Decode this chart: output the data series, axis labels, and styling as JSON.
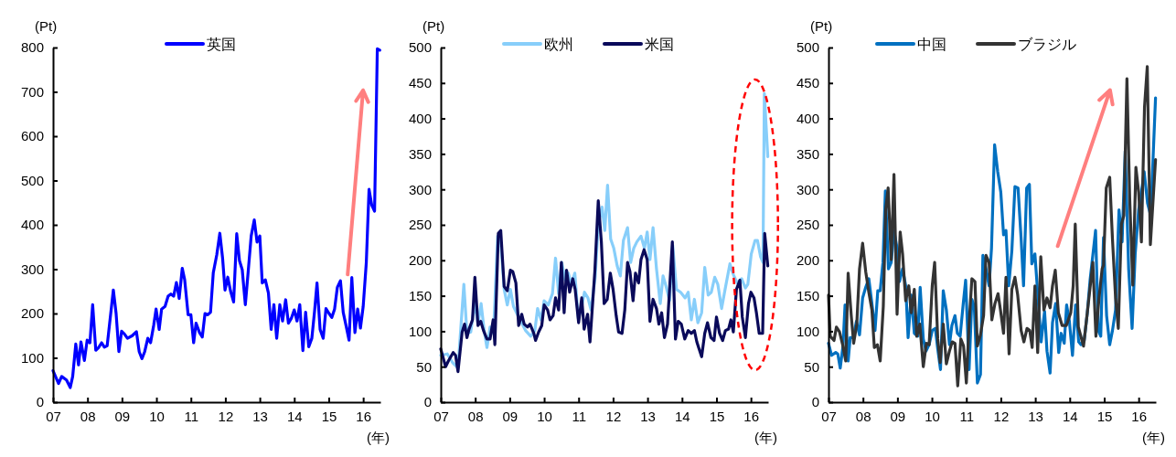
{
  "chart_data": [
    {
      "type": "line",
      "ylabel": "(Pt)",
      "xlabel": "(年)",
      "legend": "top",
      "xlim": [
        2007,
        2016.5
      ],
      "ylim": [
        0,
        800
      ],
      "yticks": [
        0,
        100,
        200,
        300,
        400,
        500,
        600,
        700,
        800
      ],
      "xticks": [
        {
          "value": 2007,
          "label": "07"
        },
        {
          "value": 2008,
          "label": "08"
        },
        {
          "value": 2009,
          "label": "09"
        },
        {
          "value": 2010,
          "label": "10"
        },
        {
          "value": 2011,
          "label": "11"
        },
        {
          "value": 2012,
          "label": "12"
        },
        {
          "value": 2013,
          "label": "13"
        },
        {
          "value": 2014,
          "label": "14"
        },
        {
          "value": 2015,
          "label": "15"
        },
        {
          "value": 2016,
          "label": "16"
        }
      ],
      "series": [
        {
          "name": "英国",
          "color": "#0000ff",
          "x": [
            2007.0,
            2007.16,
            2007.25,
            2007.39,
            2007.5,
            2007.57,
            2007.66,
            2007.74,
            2007.81,
            2007.91,
            2007.99,
            2008.07,
            2008.15,
            2008.24,
            2008.32,
            2008.41,
            2008.49,
            2008.57,
            2008.75,
            2008.83,
            2008.91,
            2008.99,
            2009.07,
            2009.16,
            2009.3,
            2009.42,
            2009.5,
            2009.58,
            2009.66,
            2009.75,
            2009.83,
            2009.92,
            2009.99,
            2010.08,
            2010.15,
            2010.25,
            2010.34,
            2010.42,
            2010.5,
            2010.58,
            2010.66,
            2010.75,
            2010.82,
            2010.92,
            2011.0,
            2011.08,
            2011.15,
            2011.25,
            2011.33,
            2011.41,
            2011.49,
            2011.57,
            2011.65,
            2011.75,
            2011.84,
            2011.92,
            2011.99,
            2012.07,
            2012.15,
            2012.24,
            2012.33,
            2012.41,
            2012.49,
            2012.58,
            2012.66,
            2012.75,
            2012.84,
            2012.92,
            2013.0,
            2013.07,
            2013.16,
            2013.25,
            2013.33,
            2013.41,
            2013.49,
            2013.58,
            2013.66,
            2013.75,
            2013.83,
            2013.92,
            2014.0,
            2014.08,
            2014.16,
            2014.25,
            2014.33,
            2014.42,
            2014.51,
            2014.59,
            2014.66,
            2014.75,
            2014.84,
            2014.92,
            2015.01,
            2015.09,
            2015.17,
            2015.25,
            2015.34,
            2015.42,
            2015.51,
            2015.59,
            2015.67,
            2015.76,
            2015.84,
            2015.92,
            2016.0,
            2016.09,
            2016.17,
            2016.25,
            2016.33,
            2016.41,
            2016.48
          ],
          "values": [
            71,
            42,
            58,
            50,
            33,
            58,
            131,
            84,
            136,
            94,
            140,
            134,
            220,
            117,
            123,
            134,
            124,
            127,
            253,
            200,
            114,
            160,
            154,
            144,
            150,
            159,
            114,
            98,
            114,
            144,
            134,
            173,
            210,
            164,
            210,
            216,
            239,
            244,
            239,
            270,
            234,
            302,
            276,
            197,
            197,
            134,
            178,
            157,
            147,
            200,
            197,
            203,
            292,
            332,
            381,
            325,
            253,
            282,
            251,
            226,
            380,
            319,
            299,
            220,
            292,
            375,
            411,
            361,
            375,
            269,
            276,
            246,
            164,
            220,
            144,
            220,
            183,
            231,
            178,
            190,
            208,
            183,
            220,
            116,
            203,
            125,
            144,
            206,
            269,
            164,
            144,
            211,
            200,
            191,
            210,
            259,
            274,
            203,
            170,
            140,
            281,
            157,
            210,
            167,
            216,
            314,
            480,
            444,
            431,
            797,
            794
          ]
        }
      ]
    },
    {
      "type": "line",
      "ylabel": "(Pt)",
      "xlabel": "(年)",
      "legend": "top",
      "xlim": [
        2007,
        2016.5
      ],
      "ylim": [
        0,
        500
      ],
      "yticks": [
        0,
        50,
        100,
        150,
        200,
        250,
        300,
        350,
        400,
        450,
        500
      ],
      "xticks": [
        {
          "value": 2007,
          "label": "07"
        },
        {
          "value": 2008,
          "label": "08"
        },
        {
          "value": 2009,
          "label": "09"
        },
        {
          "value": 2010,
          "label": "10"
        },
        {
          "value": 2011,
          "label": "11"
        },
        {
          "value": 2012,
          "label": "12"
        },
        {
          "value": 2013,
          "label": "13"
        },
        {
          "value": 2014,
          "label": "14"
        },
        {
          "value": 2015,
          "label": "15"
        },
        {
          "value": 2016,
          "label": "16"
        }
      ],
      "series": [
        {
          "name": "欧州",
          "color": "#87cefa",
          "x": [
            2007.0,
            2007.19,
            2007.34,
            2007.5,
            2007.67,
            2007.76,
            2007.87,
            2007.99,
            2008.08,
            2008.17,
            2008.26,
            2008.34,
            2008.43,
            2008.53,
            2008.65,
            2008.74,
            2008.84,
            2008.93,
            2009.02,
            2009.11,
            2009.2,
            2009.32,
            2009.46,
            2009.61,
            2009.73,
            2009.81,
            2009.91,
            2010.0,
            2010.12,
            2010.24,
            2010.33,
            2010.42,
            2010.51,
            2010.61,
            2010.7,
            2010.79,
            2010.89,
            2010.99,
            2011.08,
            2011.17,
            2011.27,
            2011.36,
            2011.48,
            2011.57,
            2011.68,
            2011.76,
            2011.84,
            2011.93,
            2012.02,
            2012.12,
            2012.21,
            2012.3,
            2012.42,
            2012.51,
            2012.6,
            2012.69,
            2012.81,
            2012.91,
            2012.99,
            2013.07,
            2013.16,
            2013.26,
            2013.37,
            2013.45,
            2013.54,
            2013.64,
            2013.73,
            2013.84,
            2013.96,
            2014.09,
            2014.18,
            2014.27,
            2014.36,
            2014.46,
            2014.57,
            2014.66,
            2014.76,
            2014.85,
            2014.95,
            2015.04,
            2015.15,
            2015.25,
            2015.39,
            2015.49,
            2015.6,
            2015.73,
            2015.84,
            2015.91,
            2016.01,
            2016.12,
            2016.19,
            2016.28,
            2016.35,
            2016.39,
            2016.49
          ],
          "values": [
            66,
            68,
            56,
            48,
            166,
            97,
            99,
            141,
            110,
            139,
            101,
            77,
            106,
            97,
            234,
            226,
            159,
            137,
            159,
            135,
            126,
            114,
            101,
            93,
            101,
            132,
            116,
            143,
            137,
            153,
            203,
            153,
            197,
            172,
            182,
            166,
            182,
            118,
            132,
            155,
            147,
            130,
            176,
            250,
            275,
            242,
            306,
            230,
            217,
            192,
            178,
            228,
            246,
            197,
            217,
            226,
            234,
            217,
            240,
            201,
            246,
            188,
            139,
            178,
            163,
            143,
            221,
            159,
            155,
            147,
            155,
            116,
            145,
            112,
            126,
            190,
            151,
            155,
            176,
            166,
            132,
            159,
            195,
            180,
            168,
            174,
            161,
            166,
            209,
            228,
            228,
            205,
            197,
            435,
            346
          ]
        },
        {
          "name": "米国",
          "color": "#0a0a5a",
          "x": [
            2007.0,
            2007.14,
            2007.22,
            2007.36,
            2007.43,
            2007.5,
            2007.62,
            2007.69,
            2007.76,
            2007.82,
            2007.92,
            2007.99,
            2008.08,
            2008.16,
            2008.24,
            2008.34,
            2008.43,
            2008.52,
            2008.57,
            2008.67,
            2008.74,
            2008.84,
            2008.93,
            2009.02,
            2009.09,
            2009.18,
            2009.26,
            2009.35,
            2009.42,
            2009.52,
            2009.59,
            2009.7,
            2009.75,
            2009.84,
            2009.93,
            2010.0,
            2010.1,
            2010.17,
            2010.26,
            2010.33,
            2010.42,
            2010.5,
            2010.58,
            2010.65,
            2010.74,
            2010.83,
            2010.9,
            2011.0,
            2011.09,
            2011.16,
            2011.26,
            2011.33,
            2011.47,
            2011.57,
            2011.66,
            2011.74,
            2011.83,
            2011.92,
            2012.0,
            2012.09,
            2012.16,
            2012.26,
            2012.34,
            2012.42,
            2012.49,
            2012.58,
            2012.65,
            2012.74,
            2012.81,
            2012.9,
            2012.99,
            2013.07,
            2013.16,
            2013.26,
            2013.33,
            2013.41,
            2013.49,
            2013.58,
            2013.72,
            2013.81,
            2013.89,
            2013.98,
            2014.08,
            2014.18,
            2014.27,
            2014.36,
            2014.43,
            2014.57,
            2014.66,
            2014.74,
            2014.84,
            2014.93,
            2015.0,
            2015.09,
            2015.18,
            2015.26,
            2015.35,
            2015.42,
            2015.49,
            2015.58,
            2015.68,
            2015.75,
            2015.84,
            2015.93,
            2016.0,
            2016.09,
            2016.16,
            2016.24,
            2016.34,
            2016.4,
            2016.49
          ],
          "values": [
            75,
            50,
            58,
            70,
            66,
            43,
            99,
            110,
            91,
            103,
            116,
            176,
            108,
            114,
            101,
            89,
            89,
            116,
            81,
            238,
            242,
            163,
            157,
            186,
            184,
            168,
            108,
            124,
            110,
            106,
            110,
            97,
            87,
            99,
            108,
            137,
            130,
            116,
            122,
            147,
            130,
            197,
            126,
            186,
            155,
            174,
            159,
            112,
            147,
            103,
            124,
            85,
            184,
            284,
            226,
            139,
            145,
            182,
            159,
            122,
            99,
            97,
            130,
            197,
            184,
            143,
            182,
            168,
            201,
            215,
            201,
            114,
            145,
            132,
            110,
            126,
            91,
            110,
            226,
            89,
            114,
            110,
            89,
            101,
            97,
            101,
            85,
            64,
            97,
            112,
            91,
            87,
            120,
            97,
            87,
            101,
            103,
            116,
            99,
            159,
            172,
            120,
            91,
            139,
            155,
            147,
            126,
            97,
            97,
            238,
            192
          ]
        }
      ]
    },
    {
      "type": "line",
      "ylabel": "(Pt)",
      "xlabel": "(年)",
      "legend": "top",
      "xlim": [
        2007,
        2016.5
      ],
      "ylim": [
        0,
        500
      ],
      "yticks": [
        0,
        50,
        100,
        150,
        200,
        250,
        300,
        350,
        400,
        450,
        500
      ],
      "xticks": [
        {
          "value": 2007,
          "label": "07"
        },
        {
          "value": 2008,
          "label": "08"
        },
        {
          "value": 2009,
          "label": "09"
        },
        {
          "value": 2010,
          "label": "10"
        },
        {
          "value": 2011,
          "label": "11"
        },
        {
          "value": 2012,
          "label": "12"
        },
        {
          "value": 2013,
          "label": "13"
        },
        {
          "value": 2014,
          "label": "14"
        },
        {
          "value": 2015,
          "label": "15"
        },
        {
          "value": 2016,
          "label": "16"
        }
      ],
      "series": [
        {
          "name": "中国",
          "color": "#0070c0",
          "x": [
            2007.0,
            2007.09,
            2007.21,
            2007.27,
            2007.34,
            2007.42,
            2007.48,
            2007.57,
            2007.63,
            2007.72,
            2007.81,
            2007.9,
            2007.99,
            2008.08,
            2008.17,
            2008.26,
            2008.35,
            2008.43,
            2008.5,
            2008.58,
            2008.65,
            2008.74,
            2008.82,
            2008.9,
            2008.99,
            2009.06,
            2009.15,
            2009.24,
            2009.31,
            2009.4,
            2009.49,
            2009.59,
            2009.66,
            2009.75,
            2009.83,
            2009.92,
            2010.01,
            2010.1,
            2010.17,
            2010.25,
            2010.33,
            2010.42,
            2010.51,
            2010.58,
            2010.67,
            2010.74,
            2010.82,
            2010.91,
            2010.98,
            2011.08,
            2011.16,
            2011.23,
            2011.32,
            2011.41,
            2011.48,
            2011.57,
            2011.66,
            2011.73,
            2011.82,
            2011.91,
            2012.0,
            2012.08,
            2012.15,
            2012.23,
            2012.32,
            2012.41,
            2012.5,
            2012.59,
            2012.66,
            2012.75,
            2012.83,
            2012.9,
            2012.99,
            2013.08,
            2013.17,
            2013.27,
            2013.34,
            2013.43,
            2013.5,
            2013.59,
            2013.68,
            2013.75,
            2013.84,
            2013.91,
            2013.99,
            2014.08,
            2014.17,
            2014.26,
            2014.33,
            2014.42,
            2014.51,
            2014.59,
            2014.75,
            2014.83,
            2014.9,
            2014.98,
            2015.07,
            2015.16,
            2015.24,
            2015.33,
            2015.43,
            2015.52,
            2015.61,
            2015.71,
            2015.81,
            2015.9,
            2016.0,
            2016.08,
            2016.16,
            2016.26,
            2016.35,
            2016.49
          ],
          "values": [
            83,
            66,
            70,
            68,
            48,
            79,
            137,
            58,
            91,
            91,
            114,
            95,
            147,
            162,
            174,
            139,
            101,
            157,
            157,
            197,
            298,
            188,
            197,
            242,
            217,
            170,
            188,
            164,
            91,
            151,
            97,
            93,
            162,
            89,
            72,
            81,
            101,
            104,
            75,
            46,
            157,
            130,
            81,
            108,
            122,
            97,
            93,
            139,
            172,
            46,
            145,
            135,
            27,
            39,
            207,
            188,
            164,
            217,
            363,
            325,
            296,
            236,
            242,
            164,
            213,
            304,
            302,
            230,
            164,
            302,
            307,
            195,
            209,
            147,
            85,
            128,
            72,
            41,
            112,
            139,
            70,
            97,
            83,
            137,
            114,
            66,
            137,
            85,
            81,
            87,
            126,
            172,
            242,
            101,
            93,
            232,
            122,
            81,
            101,
            130,
            271,
            226,
            354,
            188,
            104,
            209,
            271,
            296,
            325,
            280,
            263,
            429
          ]
        },
        {
          "name": "ブラジル",
          "color": "#333333",
          "x": [
            2007.0,
            2007.05,
            2007.16,
            2007.23,
            2007.32,
            2007.41,
            2007.5,
            2007.57,
            2007.66,
            2007.73,
            2007.82,
            2007.9,
            2007.99,
            2008.08,
            2008.17,
            2008.26,
            2008.33,
            2008.42,
            2008.5,
            2008.59,
            2008.66,
            2008.73,
            2008.82,
            2008.9,
            2008.99,
            2009.08,
            2009.15,
            2009.24,
            2009.33,
            2009.4,
            2009.49,
            2009.56,
            2009.65,
            2009.75,
            2009.84,
            2009.92,
            2010.01,
            2010.08,
            2010.17,
            2010.24,
            2010.33,
            2010.42,
            2010.51,
            2010.59,
            2010.67,
            2010.75,
            2010.84,
            2010.92,
            2011.0,
            2011.08,
            2011.16,
            2011.25,
            2011.32,
            2011.41,
            2011.5,
            2011.57,
            2011.66,
            2011.74,
            2011.83,
            2011.92,
            2011.99,
            2012.08,
            2012.15,
            2012.24,
            2012.32,
            2012.41,
            2012.49,
            2012.59,
            2012.67,
            2012.76,
            2012.84,
            2012.91,
            2012.99,
            2013.07,
            2013.16,
            2013.25,
            2013.34,
            2013.43,
            2013.5,
            2013.58,
            2013.67,
            2013.78,
            2013.9,
            2014.03,
            2014.1,
            2014.16,
            2014.25,
            2014.4,
            2014.51,
            2014.67,
            2014.76,
            2014.85,
            2014.94,
            2014.98,
            2015.06,
            2015.16,
            2015.24,
            2015.33,
            2015.41,
            2015.5,
            2015.57,
            2015.66,
            2015.74,
            2015.83,
            2015.92,
            2016.0,
            2016.08,
            2016.17,
            2016.25,
            2016.34,
            2016.49
          ],
          "values": [
            151,
            93,
            87,
            106,
            99,
            81,
            58,
            182,
            122,
            83,
            110,
            188,
            224,
            184,
            155,
            130,
            77,
            81,
            58,
            135,
            271,
            302,
            201,
            321,
            124,
            240,
            209,
            143,
            164,
            126,
            159,
            93,
            110,
            50,
            83,
            81,
            164,
            197,
            89,
            56,
            110,
            54,
            72,
            85,
            83,
            23,
            89,
            79,
            27,
            110,
            174,
            170,
            79,
            95,
            122,
            207,
            197,
            116,
            139,
            153,
            130,
            97,
            176,
            68,
            159,
            176,
            151,
            101,
            85,
            104,
            101,
            77,
            164,
            70,
            205,
            130,
            147,
            133,
            164,
            186,
            126,
            108,
            108,
            126,
            164,
            251,
            106,
            79,
            126,
            197,
            93,
            147,
            188,
            193,
            302,
            317,
            230,
            147,
            104,
            251,
            263,
            456,
            288,
            165,
            331,
            296,
            226,
            416,
            473,
            222,
            342
          ]
        }
      ]
    }
  ]
}
